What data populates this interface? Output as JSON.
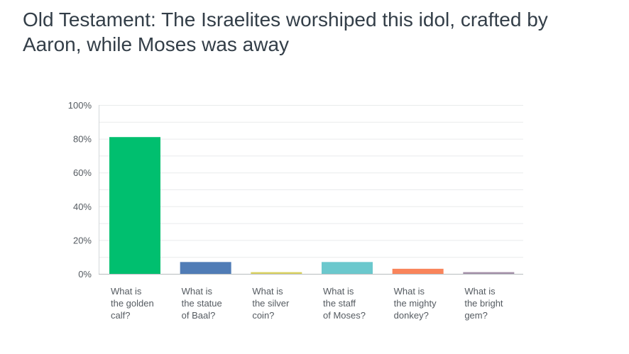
{
  "chart_data": {
    "type": "bar",
    "title": "Old Testament: The Israelites worshiped this idol, crafted by Aaron, while Moses was away",
    "categories": [
      [
        "What is",
        "the golden",
        "calf?"
      ],
      [
        "What is",
        "the statue",
        "of Baal?"
      ],
      [
        "What is",
        "the silver",
        "coin?"
      ],
      [
        "What is",
        "the staff",
        "of Moses?"
      ],
      [
        "What is",
        "the mighty",
        "donkey?"
      ],
      [
        "What is",
        "the bright",
        "gem?"
      ]
    ],
    "values": [
      81,
      7,
      1,
      7,
      3,
      1
    ],
    "colors": [
      "#00bf6f",
      "#507cb6",
      "#dad15f",
      "#6bc8cd",
      "#f9845b",
      "#a38fa8"
    ],
    "ylim": [
      0,
      100
    ],
    "yticks": [
      "0%",
      "20%",
      "40%",
      "60%",
      "80%",
      "100%"
    ],
    "ytick_values": [
      0,
      20,
      40,
      60,
      80,
      100
    ],
    "grid": true,
    "xlabel": "",
    "ylabel": ""
  }
}
